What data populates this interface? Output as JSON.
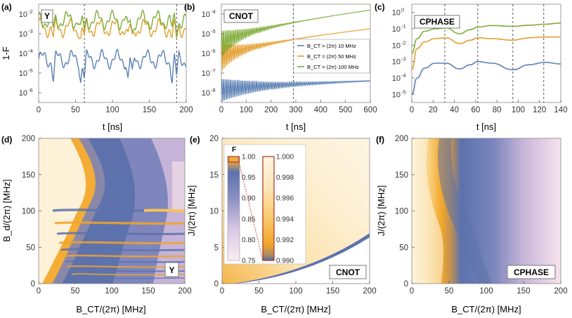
{
  "figure": {
    "panel_labels": [
      "(a)",
      "(b)",
      "(c)",
      "(d)",
      "(e)",
      "(f)"
    ]
  },
  "chart_data": [
    {
      "id": "a",
      "type": "line",
      "gate": "Y",
      "xlabel": "t [ns]",
      "ylabel": "1-F",
      "xlim": [
        0,
        200
      ],
      "ylog": true,
      "xticks": [
        "0",
        "50",
        "100",
        "150",
        "200"
      ],
      "yticks": [
        {
          "label": "10",
          "exp": "-6"
        },
        {
          "label": "10",
          "exp": "-5"
        },
        {
          "label": "10",
          "exp": "-4"
        },
        {
          "label": "10",
          "exp": "-3"
        },
        {
          "label": "10",
          "exp": "-2"
        }
      ],
      "vlines_t": [
        62,
        187
      ],
      "series": [
        {
          "name": "B_CT = (2π) 10 MHz",
          "color": "#5b7fb4",
          "mean_log10": -4.3,
          "dips_t": [
            20,
            57,
            62,
            121,
            127,
            181,
            187
          ]
        },
        {
          "name": "B_CT = (2π) 50 MHz",
          "color": "#e39f2e",
          "mean_log10": -2.7,
          "dips_t": [
            20,
            57,
            62,
            121,
            127,
            181,
            187
          ]
        },
        {
          "name": "B_CT = (2π) 100 MHz",
          "color": "#7fac39",
          "mean_log10": -2.3,
          "dips_t": [
            20,
            57,
            62,
            121,
            127,
            181,
            187
          ]
        }
      ]
    },
    {
      "id": "b",
      "type": "line",
      "gate": "CNOT",
      "xlabel": "t [ns]",
      "xlim": [
        0,
        600
      ],
      "ylog": true,
      "xticks": [
        "0",
        "100",
        "200",
        "300",
        "400",
        "500",
        "600"
      ],
      "yticks": [
        {
          "label": "10",
          "exp": "-8"
        },
        {
          "label": "10",
          "exp": "-7"
        },
        {
          "label": "10",
          "exp": "-6"
        },
        {
          "label": "10",
          "exp": "-5"
        },
        {
          "label": "10",
          "exp": "-4"
        }
      ],
      "vlines_t": [
        290
      ],
      "legend": [
        "B_CT = (2π) 10 MHz",
        "B_CT = (2π) 50 MHz",
        "B_CT = (2π) 100 MHz"
      ],
      "series": [
        {
          "name": "B_CT = (2π) 10 MHz",
          "color": "#5b7fb4",
          "start_log10": -7.9,
          "end_log10": -7.4
        },
        {
          "name": "B_CT = (2π) 50 MHz",
          "color": "#e39f2e",
          "start_log10": -6.3,
          "end_log10": -4.75
        },
        {
          "name": "B_CT = (2π) 100 MHz",
          "color": "#7fac39",
          "start_log10": -5.6,
          "end_log10": -3.8
        }
      ]
    },
    {
      "id": "c",
      "type": "line",
      "gate": "CPHASE",
      "xlabel": "t [ns]",
      "xlim": [
        0,
        140
      ],
      "ylog": true,
      "xticks": [
        "0",
        "20",
        "40",
        "60",
        "80",
        "100",
        "120",
        "140"
      ],
      "yticks": [
        {
          "label": "10",
          "exp": "-5"
        },
        {
          "label": "10",
          "exp": "-4"
        },
        {
          "label": "10",
          "exp": "-3"
        },
        {
          "label": "10",
          "exp": "-2"
        },
        {
          "label": "10",
          "exp": "-1"
        },
        {
          "label": "10",
          "exp": "0"
        }
      ],
      "vlines_t": [
        31,
        62,
        95,
        124
      ],
      "series": [
        {
          "name": "B_CT = (2π) 10 MHz",
          "color": "#5b7fb4",
          "points": [
            [
              0,
              -5
            ],
            [
              5,
              -4
            ],
            [
              12,
              -3.4
            ],
            [
              22,
              -3.1
            ],
            [
              32,
              -3.1
            ],
            [
              45,
              -3.45
            ],
            [
              55,
              -3.2
            ],
            [
              62,
              -3.0
            ],
            [
              75,
              -3.1
            ],
            [
              95,
              -3.5
            ],
            [
              110,
              -3.2
            ],
            [
              125,
              -3.05
            ],
            [
              140,
              -3.15
            ]
          ]
        },
        {
          "name": "B_CT = (2π) 50 MHz",
          "color": "#e39f2e",
          "points": [
            [
              0,
              -3.5
            ],
            [
              5,
              -2.2
            ],
            [
              12,
              -1.8
            ],
            [
              22,
              -1.6
            ],
            [
              32,
              -1.55
            ],
            [
              45,
              -1.9
            ],
            [
              55,
              -1.7
            ],
            [
              62,
              -1.55
            ],
            [
              75,
              -1.6
            ],
            [
              95,
              -1.7
            ],
            [
              110,
              -1.55
            ],
            [
              125,
              -1.5
            ],
            [
              140,
              -1.5
            ]
          ]
        },
        {
          "name": "B_CT = (2π) 100 MHz",
          "color": "#7fac39",
          "points": [
            [
              0,
              -2.5
            ],
            [
              5,
              -1.6
            ],
            [
              12,
              -1.15
            ],
            [
              22,
              -1.0
            ],
            [
              32,
              -0.95
            ],
            [
              45,
              -1.3
            ],
            [
              55,
              -1.05
            ],
            [
              62,
              -0.9
            ],
            [
              75,
              -0.8
            ],
            [
              95,
              -0.85
            ],
            [
              110,
              -0.78
            ],
            [
              125,
              -0.72
            ],
            [
              140,
              -0.65
            ]
          ]
        }
      ]
    },
    {
      "id": "d",
      "type": "heatmap",
      "gate": "Y",
      "xlabel": "B_CT/(2π) [MHz]",
      "ylabel": "B_d/(2π) [MHz]",
      "xlim": [
        0,
        200
      ],
      "ylim": [
        0,
        200
      ],
      "xticks": [
        "0",
        "50",
        "100",
        "150",
        "200"
      ],
      "yticks": [
        "0",
        "50",
        "100",
        "150",
        "200"
      ]
    },
    {
      "id": "e",
      "type": "heatmap",
      "gate": "CNOT",
      "xlabel": "B_CT/(2π) [MHz]",
      "ylabel": "J/(2π) [MHz]",
      "xlim": [
        0,
        200
      ],
      "ylim": [
        0,
        20
      ],
      "xticks": [
        "0",
        "50",
        "100",
        "150",
        "200"
      ],
      "yticks": [
        "0",
        "5",
        "10",
        "15",
        "20"
      ],
      "colorbar": {
        "title": "F",
        "full_ticks": [
          "1.00",
          "0.95",
          "0.90",
          "0.85",
          "0.80",
          "0.75"
        ],
        "zoom_ticks": [
          "1.000",
          "0.998",
          "0.996",
          "0.994",
          "0.992",
          "0.990"
        ]
      }
    },
    {
      "id": "f",
      "type": "heatmap",
      "gate": "CPHASE",
      "xlabel": "B_CT/(2π) [MHz]",
      "ylabel": "J/(2π) [MHz]",
      "xlim": [
        0,
        200
      ],
      "ylim": [
        0,
        200
      ],
      "xticks": [
        "0",
        "50",
        "100",
        "150",
        "200"
      ],
      "yticks": [
        "0",
        "50",
        "100",
        "150",
        "200"
      ]
    }
  ]
}
